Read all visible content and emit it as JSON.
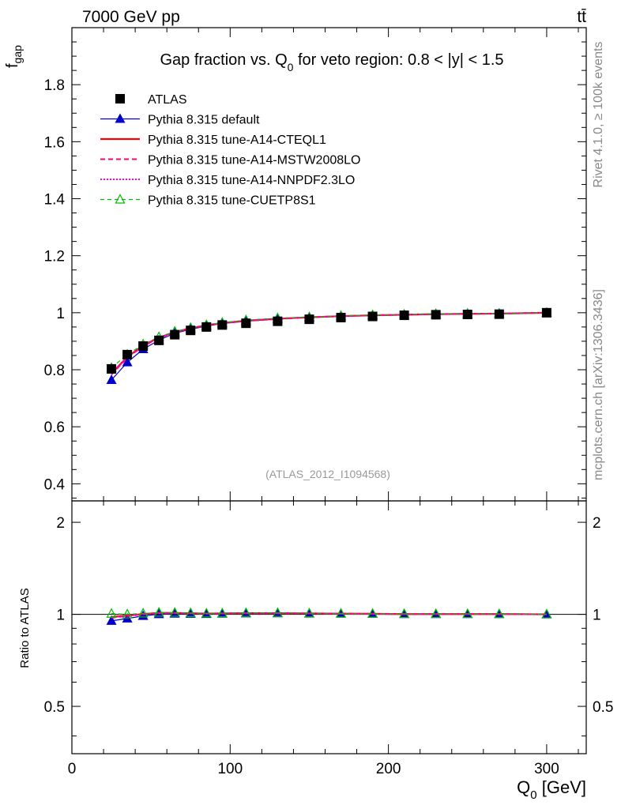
{
  "header": {
    "energy_label": "7000 GeV pp",
    "process_label": "tt̄"
  },
  "side": {
    "rivet_label": "Rivet 4.1.0, ≥ 100k events",
    "mcplots_label": "mcplots.cern.ch [arXiv:1306.3436]"
  },
  "chart_data": {
    "type": "line",
    "title": "Gap fraction vs. Q0 for veto region: 0.8 < |y| < 1.5",
    "title_parts": {
      "main": "Gap fraction vs. Q",
      "sub": "0",
      "rest": " for veto region: 0.8 < |y| < 1.5"
    },
    "watermark": "(ATLAS_2012_I1094568)",
    "xlabel": {
      "main": "Q",
      "sub": "0",
      "rest": " [GeV]"
    },
    "ylabel": {
      "main": "f",
      "sub": "gap"
    },
    "ratio_ylabel": "Ratio to ATLAS",
    "xlim": [
      0,
      325
    ],
    "ylim": [
      0.34,
      2.0
    ],
    "ratio_ylim": [
      0.35,
      2.35
    ],
    "x_ticks": [
      "0",
      "100",
      "200",
      "300"
    ],
    "y_ticks": [
      "0.4",
      "0.6",
      "0.8",
      "1",
      "1.2",
      "1.4",
      "1.6",
      "1.8"
    ],
    "ratio_ticks": [
      "0.5",
      "1",
      "2"
    ],
    "x": [
      25,
      35,
      45,
      55,
      65,
      75,
      85,
      95,
      110,
      130,
      150,
      170,
      190,
      210,
      230,
      250,
      270,
      300
    ],
    "series": [
      {
        "name": "ATLAS",
        "color": "#000000",
        "values": [
          0.803,
          0.853,
          0.883,
          0.903,
          0.923,
          0.938,
          0.95,
          0.957,
          0.963,
          0.97,
          0.977,
          0.983,
          0.987,
          0.991,
          0.993,
          0.994,
          0.995,
          1.0
        ],
        "ratio": [
          1,
          1,
          1,
          1,
          1,
          1,
          1,
          1,
          1,
          1,
          1,
          1,
          1,
          1,
          1,
          1,
          1,
          1
        ]
      },
      {
        "name": "Pythia 8.315 default",
        "color": "#0000cc",
        "values": [
          0.764,
          0.826,
          0.872,
          0.904,
          0.928,
          0.942,
          0.953,
          0.962,
          0.97,
          0.978,
          0.983,
          0.988,
          0.991,
          0.993,
          0.995,
          0.996,
          0.997,
          1.0
        ],
        "ratio": [
          0.952,
          0.969,
          0.988,
          1.001,
          1.005,
          1.004,
          1.003,
          1.005,
          1.007,
          1.008,
          1.006,
          1.005,
          1.004,
          1.002,
          1.002,
          1.002,
          1.002,
          1.0
        ]
      },
      {
        "name": "Pythia 8.315 tune-A14-CTEQL1",
        "color": "#ff0000",
        "values": [
          0.787,
          0.845,
          0.885,
          0.913,
          0.932,
          0.946,
          0.956,
          0.964,
          0.972,
          0.979,
          0.984,
          0.988,
          0.991,
          0.993,
          0.995,
          0.996,
          0.997,
          1.0
        ],
        "ratio": [
          0.98,
          0.991,
          1.002,
          1.011,
          1.01,
          1.008,
          1.006,
          1.007,
          1.009,
          1.009,
          1.007,
          1.005,
          1.004,
          1.002,
          1.002,
          1.002,
          1.002,
          1.0
        ]
      },
      {
        "name": "Pythia 8.315 tune-A14-MSTW2008LO",
        "color": "#ff0066",
        "values": [
          0.783,
          0.842,
          0.883,
          0.911,
          0.931,
          0.945,
          0.955,
          0.963,
          0.971,
          0.978,
          0.984,
          0.988,
          0.991,
          0.993,
          0.995,
          0.996,
          0.997,
          1.0
        ],
        "ratio": [
          0.975,
          0.987,
          1.0,
          1.009,
          1.009,
          1.007,
          1.005,
          1.006,
          1.008,
          1.008,
          1.007,
          1.005,
          1.004,
          1.002,
          1.002,
          1.002,
          1.002,
          1.0
        ]
      },
      {
        "name": "Pythia 8.315 tune-A14-NNPDF2.3LO",
        "color": "#ff00cc",
        "values": [
          0.785,
          0.844,
          0.884,
          0.912,
          0.932,
          0.946,
          0.956,
          0.964,
          0.972,
          0.979,
          0.984,
          0.988,
          0.991,
          0.993,
          0.995,
          0.996,
          0.997,
          1.0
        ],
        "ratio": [
          0.978,
          0.989,
          1.001,
          1.01,
          1.01,
          1.008,
          1.006,
          1.007,
          1.009,
          1.009,
          1.007,
          1.005,
          1.004,
          1.002,
          1.002,
          1.002,
          1.002,
          1.0
        ]
      },
      {
        "name": "Pythia 8.315 tune-CUETP8S1",
        "color": "#00bb00",
        "values": [
          0.807,
          0.853,
          0.889,
          0.915,
          0.934,
          0.947,
          0.957,
          0.965,
          0.974,
          0.981,
          0.985,
          0.989,
          0.992,
          0.994,
          0.996,
          0.997,
          0.997,
          1.0
        ],
        "ratio": [
          1.005,
          1.0,
          1.007,
          1.013,
          1.012,
          1.01,
          1.007,
          1.008,
          1.011,
          1.011,
          1.008,
          1.006,
          1.005,
          1.003,
          1.003,
          1.003,
          1.002,
          1.0
        ]
      }
    ]
  }
}
